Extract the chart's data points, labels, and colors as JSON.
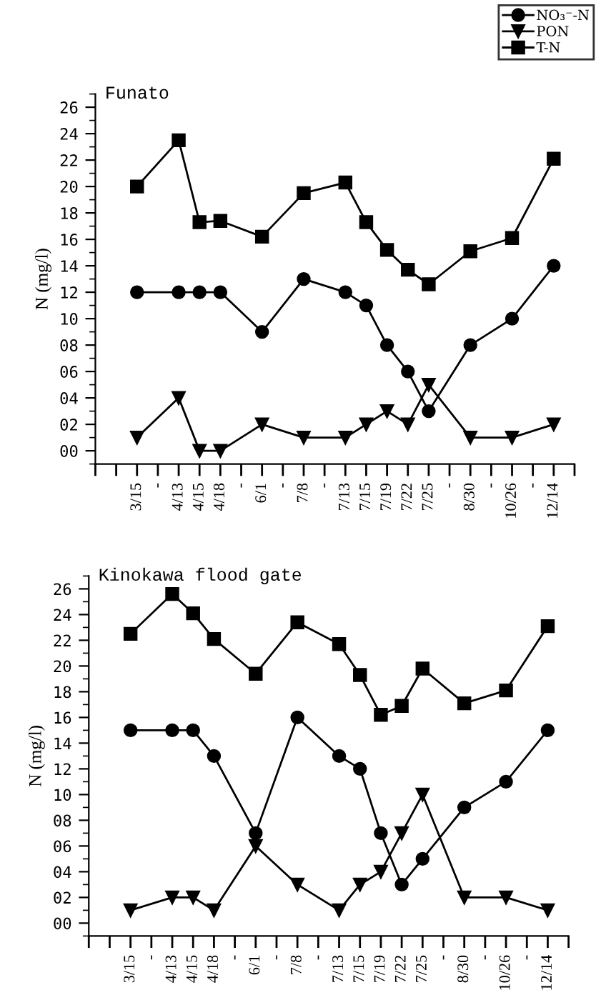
{
  "chart_data": [
    {
      "type": "line",
      "title": "Funato",
      "ylabel": "N (mg/l)",
      "categories": [
        null,
        "3/15",
        "-",
        "4/13",
        "4/15",
        "4/18",
        "-",
        "6/1",
        "-",
        "7/8",
        "-",
        "7/13",
        "7/15",
        "7/19",
        "7/22",
        "7/25",
        "-",
        "8/30",
        "-",
        "10/26",
        "-",
        "12/14"
      ],
      "series": [
        {
          "name": "NO₃⁻-N",
          "color": "#000000",
          "marker": "circle",
          "values": [
            null,
            12,
            null,
            12,
            12,
            12,
            null,
            9,
            null,
            13,
            null,
            12,
            11,
            8,
            6,
            3,
            null,
            8,
            null,
            10,
            null,
            14
          ]
        },
        {
          "name": "PON",
          "color": "#000000",
          "marker": "triangle",
          "values": [
            null,
            1,
            null,
            4,
            0,
            0,
            null,
            2,
            null,
            1,
            null,
            1,
            2,
            3,
            2,
            5,
            null,
            1,
            null,
            1,
            null,
            2
          ]
        },
        {
          "name": "T-N",
          "color": "#000000",
          "marker": "square",
          "values": [
            null,
            20,
            null,
            23.5,
            17.3,
            17.4,
            null,
            16.2,
            null,
            19.5,
            null,
            20.3,
            17.3,
            15.2,
            13.7,
            12.6,
            null,
            15.1,
            null,
            16.1,
            null,
            22.1
          ]
        }
      ],
      "ylim": [
        -1,
        27
      ],
      "yticks": [
        {
          "value": 0,
          "label": "00"
        },
        {
          "value": 2,
          "label": "02"
        },
        {
          "value": 4,
          "label": "04"
        },
        {
          "value": 6,
          "label": "06"
        },
        {
          "value": 8,
          "label": "08"
        },
        10,
        12,
        14,
        16,
        18,
        20,
        22,
        24,
        26
      ],
      "legend": "top right",
      "grid": false
    },
    {
      "type": "line",
      "title": "Kinokawa flood gate",
      "ylabel": "N (mg/l)",
      "categories": [
        null,
        "3/15",
        "-",
        "4/13",
        "4/15",
        "4/18",
        "-",
        "6/1",
        "-",
        "7/8",
        "-",
        "7/13",
        "7/15",
        "7/19",
        "7/22",
        "7/25",
        "-",
        "8/30",
        "-",
        "10/26",
        "-",
        "12/14"
      ],
      "series": [
        {
          "color": "#000000",
          "marker": "circle",
          "values": [
            null,
            15,
            null,
            15,
            15,
            13,
            null,
            7,
            null,
            16,
            null,
            13,
            12,
            7,
            3,
            5,
            null,
            9,
            null,
            11,
            null,
            15
          ]
        },
        {
          "color": "#000000",
          "marker": "triangle",
          "values": [
            null,
            1,
            null,
            2,
            2,
            1,
            null,
            6,
            null,
            3,
            null,
            1,
            3,
            4,
            7,
            10,
            null,
            2,
            null,
            2,
            null,
            1
          ]
        },
        {
          "color": "#000000",
          "marker": "square",
          "values": [
            null,
            22.5,
            null,
            25.6,
            24.1,
            22.1,
            null,
            19.4,
            null,
            23.4,
            null,
            21.7,
            19.3,
            16.2,
            16.9,
            19.8,
            null,
            17.1,
            null,
            18.1,
            null,
            23.1
          ]
        }
      ],
      "ylim": [
        -1,
        27
      ],
      "yticks": [
        {
          "value": 0,
          "label": "00"
        },
        {
          "value": 2,
          "label": "02"
        },
        {
          "value": 4,
          "label": "04"
        },
        {
          "value": 6,
          "label": "06"
        },
        {
          "value": 8,
          "label": "08"
        },
        10,
        12,
        14,
        16,
        18,
        20,
        22,
        24,
        26
      ],
      "legend": false,
      "grid": false
    }
  ]
}
